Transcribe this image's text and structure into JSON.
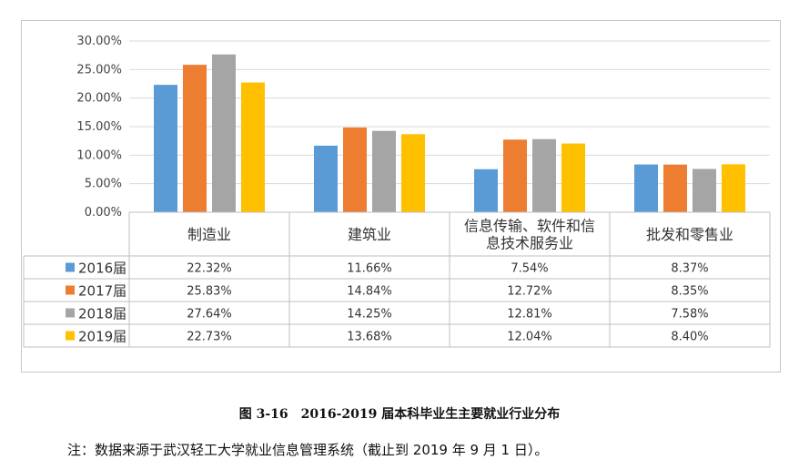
{
  "chart_data": {
    "type": "bar",
    "categories": [
      "制造业",
      "建筑业",
      "信息传输、软件和信息技术服务业",
      "批发和零售业"
    ],
    "category_lines": [
      [
        "制造业"
      ],
      [
        "建筑业"
      ],
      [
        "信息传输、软件和信",
        "息技术服务业"
      ],
      [
        "批发和零售业"
      ]
    ],
    "series": [
      {
        "name": "2016届",
        "color": "#5b9bd5",
        "values": [
          22.32,
          11.66,
          7.54,
          8.37
        ],
        "labels": [
          "22.32%",
          "11.66%",
          "7.54%",
          "8.37%"
        ]
      },
      {
        "name": "2017届",
        "color": "#ed7d31",
        "values": [
          25.83,
          14.84,
          12.72,
          8.35
        ],
        "labels": [
          "25.83%",
          "14.84%",
          "12.72%",
          "8.35%"
        ]
      },
      {
        "name": "2018届",
        "color": "#a5a5a5",
        "values": [
          27.64,
          14.25,
          12.81,
          7.58
        ],
        "labels": [
          "27.64%",
          "14.25%",
          "12.81%",
          "7.58%"
        ]
      },
      {
        "name": "2019届",
        "color": "#ffc000",
        "values": [
          22.73,
          13.68,
          12.04,
          8.4
        ],
        "labels": [
          "22.73%",
          "13.68%",
          "12.04%",
          "8.40%"
        ]
      }
    ],
    "y_ticks": [
      "0.00%",
      "5.00%",
      "10.00%",
      "15.00%",
      "20.00%",
      "25.00%",
      "30.00%"
    ],
    "ylim": [
      0,
      30
    ],
    "grid": true,
    "data_table": true
  },
  "caption": "图 3-16　2016-2019 届本科毕业生主要就业行业分布",
  "note": "注：数据来源于武汉轻工大学就业信息管理系统（截止到 2019 年 9 月 1 日）。"
}
